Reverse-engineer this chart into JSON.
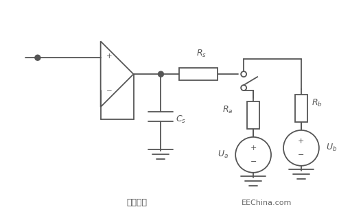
{
  "bg_color": "#ffffff",
  "line_color": "#555555",
  "title": "图（一）",
  "watermark": "EEChina.com"
}
